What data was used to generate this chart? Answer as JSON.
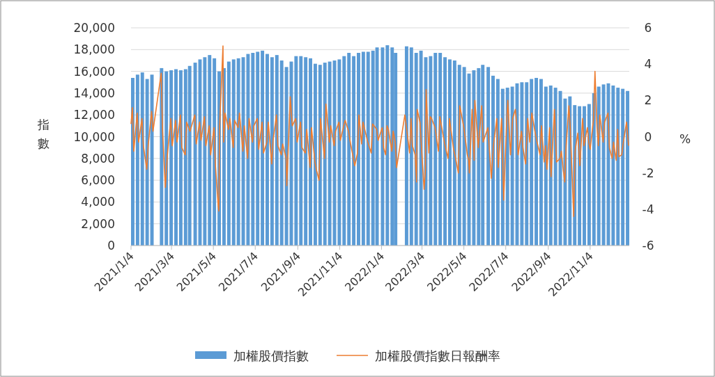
{
  "chart_data": {
    "type": "bar",
    "ylabel": "指數",
    "y2label": "%",
    "xlim": [
      "2021-01-04",
      "2022-12-31"
    ],
    "xticks": [
      {
        "value": "2021-01-04",
        "label": "2021/1/4"
      },
      {
        "value": "2021-03-04",
        "label": "2021/3/4"
      },
      {
        "value": "2021-05-04",
        "label": "2021/5/4"
      },
      {
        "value": "2021-07-04",
        "label": "2021/7/4"
      },
      {
        "value": "2021-09-04",
        "label": "2021/9/4"
      },
      {
        "value": "2021-11-04",
        "label": "2021/11/4"
      },
      {
        "value": "2022-01-04",
        "label": "2022/1/4"
      },
      {
        "value": "2022-03-04",
        "label": "2022/3/4"
      },
      {
        "value": "2022-05-04",
        "label": "2022/5/4"
      },
      {
        "value": "2022-07-04",
        "label": "2022/7/4"
      },
      {
        "value": "2022-09-04",
        "label": "2022/9/4"
      },
      {
        "value": "2022-11-04",
        "label": "2022/11/4"
      }
    ],
    "ylim": [
      0,
      20000
    ],
    "yticks": [
      0,
      {
        "value": 2000,
        "label": "2,000"
      },
      {
        "value": 4000,
        "label": "4,000"
      },
      {
        "value": 6000,
        "label": "6,000"
      },
      {
        "value": 8000,
        "label": "8,000"
      },
      {
        "value": 10000,
        "label": "10,000"
      },
      {
        "value": 12000,
        "label": "12,000"
      },
      {
        "value": 14000,
        "label": "14,000"
      },
      {
        "value": 16000,
        "label": "16,000"
      },
      {
        "value": 18000,
        "label": "18,000"
      },
      {
        "value": 20000,
        "label": "20,000"
      }
    ],
    "y2lim": [
      -6,
      6
    ],
    "y2ticks": [
      -6,
      -4,
      -2,
      0,
      2,
      4,
      6
    ],
    "grid": "y",
    "legend": "bottom",
    "series": [
      {
        "name": "加權股價指數",
        "color": "#5b9bd5",
        "x": [
          "2021-01-08",
          "2021-01-15",
          "2021-01-22",
          "2021-01-29",
          "2021-02-05",
          "2021-02-19",
          "2021-02-26",
          "2021-03-05",
          "2021-03-12",
          "2021-03-19",
          "2021-03-26",
          "2021-04-01",
          "2021-04-09",
          "2021-04-16",
          "2021-04-23",
          "2021-04-30",
          "2021-05-07",
          "2021-05-14",
          "2021-05-21",
          "2021-05-28",
          "2021-06-04",
          "2021-06-11",
          "2021-06-18",
          "2021-06-25",
          "2021-07-02",
          "2021-07-09",
          "2021-07-16",
          "2021-07-23",
          "2021-07-30",
          "2021-08-06",
          "2021-08-13",
          "2021-08-20",
          "2021-08-27",
          "2021-09-03",
          "2021-09-10",
          "2021-09-17",
          "2021-09-24",
          "2021-10-01",
          "2021-10-08",
          "2021-10-15",
          "2021-10-22",
          "2021-10-29",
          "2021-11-05",
          "2021-11-12",
          "2021-11-19",
          "2021-11-26",
          "2021-12-03",
          "2021-12-10",
          "2021-12-17",
          "2021-12-24",
          "2021-12-30",
          "2022-01-07",
          "2022-01-14",
          "2022-01-21",
          "2022-01-26",
          "2022-02-11",
          "2022-02-18",
          "2022-02-25",
          "2022-03-04",
          "2022-03-11",
          "2022-03-18",
          "2022-03-25",
          "2022-04-01",
          "2022-04-08",
          "2022-04-15",
          "2022-04-22",
          "2022-04-29",
          "2022-05-06",
          "2022-05-13",
          "2022-05-20",
          "2022-05-27",
          "2022-06-02",
          "2022-06-10",
          "2022-06-17",
          "2022-06-24",
          "2022-07-01",
          "2022-07-08",
          "2022-07-15",
          "2022-07-22",
          "2022-07-29",
          "2022-08-05",
          "2022-08-12",
          "2022-08-19",
          "2022-08-26",
          "2022-09-02",
          "2022-09-09",
          "2022-09-16",
          "2022-09-23",
          "2022-09-30",
          "2022-10-07",
          "2022-10-14",
          "2022-10-21",
          "2022-10-28",
          "2022-11-04",
          "2022-11-11",
          "2022-11-18",
          "2022-11-25",
          "2022-12-02",
          "2022-12-09",
          "2022-12-16",
          "2022-12-23",
          "2022-12-30"
        ],
        "values": [
          15400,
          15700,
          15900,
          15300,
          15700,
          16300,
          16000,
          16100,
          16200,
          16100,
          16200,
          16500,
          16800,
          17100,
          17300,
          17500,
          17200,
          16000,
          16300,
          16900,
          17100,
          17200,
          17300,
          17600,
          17700,
          17800,
          17900,
          17600,
          17300,
          17500,
          17000,
          16400,
          16900,
          17400,
          17400,
          17300,
          17200,
          16700,
          16600,
          16800,
          16900,
          17000,
          17100,
          17400,
          17700,
          17400,
          17700,
          17800,
          17800,
          17900,
          18200,
          18200,
          18400,
          18200,
          17700,
          18300,
          18200,
          17700,
          17900,
          17300,
          17400,
          17700,
          17700,
          17300,
          17100,
          17000,
          16600,
          16400,
          15800,
          16100,
          16300,
          16600,
          16400,
          15600,
          15300,
          14400,
          14500,
          14600,
          14900,
          15000,
          15000,
          15300,
          15400,
          15300,
          14600,
          14700,
          14500,
          14200,
          13500,
          13700,
          12900,
          12800,
          12800,
          13000,
          14000,
          14600,
          14800,
          14900,
          14700,
          14500,
          14400,
          14200
        ]
      },
      {
        "name": "加權股價指數日報酬率",
        "type": "line",
        "axis": "y2",
        "color": "#ed7d31",
        "x": [
          "2021-01-04",
          "2021-01-06",
          "2021-01-08",
          "2021-01-13",
          "2021-01-15",
          "2021-01-20",
          "2021-01-22",
          "2021-01-27",
          "2021-01-29",
          "2021-02-03",
          "2021-02-05",
          "2021-02-17",
          "2021-02-19",
          "2021-02-23",
          "2021-02-26",
          "2021-03-03",
          "2021-03-05",
          "2021-03-10",
          "2021-03-12",
          "2021-03-17",
          "2021-03-19",
          "2021-03-24",
          "2021-03-26",
          "2021-03-31",
          "2021-04-07",
          "2021-04-09",
          "2021-04-14",
          "2021-04-16",
          "2021-04-21",
          "2021-04-23",
          "2021-04-28",
          "2021-04-30",
          "2021-05-05",
          "2021-05-07",
          "2021-05-11",
          "2021-05-12",
          "2021-05-13",
          "2021-05-18",
          "2021-05-19",
          "2021-05-21",
          "2021-05-26",
          "2021-05-28",
          "2021-06-02",
          "2021-06-04",
          "2021-06-09",
          "2021-06-11",
          "2021-06-16",
          "2021-06-18",
          "2021-06-23",
          "2021-06-25",
          "2021-06-30",
          "2021-07-02",
          "2021-07-07",
          "2021-07-09",
          "2021-07-14",
          "2021-07-16",
          "2021-07-21",
          "2021-07-23",
          "2021-07-28",
          "2021-07-30",
          "2021-08-04",
          "2021-08-06",
          "2021-08-11",
          "2021-08-13",
          "2021-08-18",
          "2021-08-19",
          "2021-08-24",
          "2021-08-27",
          "2021-09-01",
          "2021-09-03",
          "2021-09-08",
          "2021-09-10",
          "2021-09-15",
          "2021-09-17",
          "2021-09-22",
          "2021-09-24",
          "2021-09-29",
          "2021-10-01",
          "2021-10-05",
          "2021-10-07",
          "2021-10-13",
          "2021-10-15",
          "2021-10-20",
          "2021-10-22",
          "2021-10-27",
          "2021-10-29",
          "2021-11-03",
          "2021-11-05",
          "2021-11-10",
          "2021-11-12",
          "2021-11-17",
          "2021-11-19",
          "2021-11-26",
          "2021-11-30",
          "2021-12-02",
          "2021-12-06",
          "2021-12-08",
          "2021-12-15",
          "2021-12-20",
          "2021-12-22",
          "2021-12-28",
          "2021-12-30",
          "2022-01-05",
          "2022-01-07",
          "2022-01-10",
          "2022-01-12",
          "2022-01-14",
          "2022-01-19",
          "2022-01-21",
          "2022-01-24",
          "2022-01-26",
          "2022-02-07",
          "2022-02-09",
          "2022-02-14",
          "2022-02-16",
          "2022-02-18",
          "2022-02-22",
          "2022-02-24",
          "2022-02-25",
          "2022-03-01",
          "2022-03-07",
          "2022-03-09",
          "2022-03-10",
          "2022-03-14",
          "2022-03-16",
          "2022-03-18",
          "2022-03-23",
          "2022-03-28",
          "2022-03-30",
          "2022-04-06",
          "2022-04-11",
          "2022-04-13",
          "2022-04-19",
          "2022-04-22",
          "2022-04-26",
          "2022-04-28",
          "2022-05-04",
          "2022-05-09",
          "2022-05-11",
          "2022-05-12",
          "2022-05-16",
          "2022-05-19",
          "2022-05-20",
          "2022-05-25",
          "2022-05-30",
          "2022-06-01",
          "2022-06-08",
          "2022-06-13",
          "2022-06-16",
          "2022-06-21",
          "2022-06-23",
          "2022-06-28",
          "2022-07-01",
          "2022-07-05",
          "2022-07-07",
          "2022-07-11",
          "2022-07-14",
          "2022-07-18",
          "2022-07-20",
          "2022-07-22",
          "2022-07-27",
          "2022-07-29",
          "2022-08-02",
          "2022-08-05",
          "2022-08-08",
          "2022-08-11",
          "2022-08-15",
          "2022-08-18",
          "2022-08-23",
          "2022-08-25",
          "2022-08-29",
          "2022-08-31",
          "2022-09-02",
          "2022-09-06",
          "2022-09-08",
          "2022-09-13",
          "2022-09-16",
          "2022-09-21",
          "2022-09-23",
          "2022-09-26",
          "2022-09-28",
          "2022-09-30",
          "2022-10-04",
          "2022-10-06",
          "2022-10-11",
          "2022-10-13",
          "2022-10-17",
          "2022-10-20",
          "2022-10-24",
          "2022-10-26",
          "2022-10-31",
          "2022-11-02",
          "2022-11-04",
          "2022-11-09",
          "2022-11-11",
          "2022-11-14",
          "2022-11-16",
          "2022-11-18",
          "2022-11-23",
          "2022-11-25",
          "2022-11-30",
          "2022-12-02",
          "2022-12-06",
          "2022-12-08",
          "2022-12-12",
          "2022-12-14",
          "2022-12-16",
          "2022-12-20",
          "2022-12-22",
          "2022-12-27",
          "2022-12-30"
        ],
        "values": [
          0.7,
          1.6,
          -0.8,
          1.3,
          -0.3,
          1.0,
          -0.5,
          -1.8,
          -0.5,
          1.4,
          0.3,
          3.5,
          0.3,
          -2.8,
          -1.0,
          1.0,
          -0.5,
          0.9,
          -0.3,
          1.2,
          -0.6,
          -1.0,
          0.8,
          0.3,
          1.2,
          -0.4,
          0.8,
          -0.2,
          1.1,
          -0.5,
          0.6,
          -1.0,
          0.5,
          -1.6,
          -3.8,
          -4.1,
          0.5,
          5.0,
          -0.3,
          1.3,
          0.4,
          1.0,
          -0.6,
          0.9,
          0.5,
          1.3,
          -0.8,
          0.6,
          -1.2,
          1.0,
          -0.3,
          0.6,
          1.0,
          -0.7,
          0.8,
          -0.9,
          -0.3,
          0.8,
          -1.5,
          -0.2,
          1.2,
          -0.5,
          -1.0,
          -0.4,
          -1.2,
          -2.7,
          2.2,
          0.6,
          1.0,
          -0.3,
          0.8,
          -0.6,
          -0.9,
          0.4,
          -1.7,
          0.5,
          -1.4,
          -1.8,
          -2.4,
          1.0,
          -1.2,
          1.8,
          -0.3,
          0.6,
          -0.5,
          0.3,
          0.8,
          -0.2,
          0.6,
          0.9,
          0.3,
          -0.2,
          -1.6,
          -0.9,
          1.2,
          -0.4,
          0.8,
          -0.3,
          -0.9,
          0.7,
          0.4,
          -0.2,
          0.5,
          -0.6,
          -1.0,
          0.6,
          0.4,
          -0.8,
          0.3,
          -0.3,
          -1.7,
          1.2,
          0.6,
          -0.9,
          1.0,
          -0.5,
          -1.0,
          -2.5,
          1.5,
          0.8,
          -2.9,
          -1.8,
          2.6,
          -0.9,
          1.1,
          1.0,
          0.5,
          -0.8,
          1.1,
          -0.4,
          -1.2,
          1.0,
          -0.7,
          -1.2,
          -2.0,
          1.7,
          0.5,
          -1.0,
          -1.3,
          -2.0,
          1.5,
          -1.3,
          2.0,
          -0.6,
          1.7,
          -0.3,
          0.5,
          -2.3,
          -0.5,
          1.0,
          -1.7,
          1.0,
          -3.5,
          0.5,
          2.0,
          -1.0,
          1.0,
          1.5,
          0.6,
          -1.0,
          0.3,
          -0.6,
          -1.5,
          1.0,
          -0.3,
          1.3,
          0.4,
          -0.2,
          -1.0,
          0.6,
          -1.4,
          -0.5,
          -1.8,
          0.5,
          -2.2,
          1.5,
          -1.4,
          -1.2,
          -0.8,
          -1.9,
          -2.5,
          -0.5,
          1.7,
          0.5,
          -4.4,
          -0.8,
          0.2,
          -1.6,
          1.0,
          -0.5,
          0.5,
          -0.3,
          -0.7,
          1.0,
          3.6,
          0.5,
          -0.5,
          1.2,
          -0.3,
          0.8,
          1.3,
          -0.6,
          -1.2,
          -0.3,
          -1.3,
          0.4,
          -1.1,
          -1.0,
          -0.4,
          0.8,
          -0.5
        ]
      }
    ]
  }
}
